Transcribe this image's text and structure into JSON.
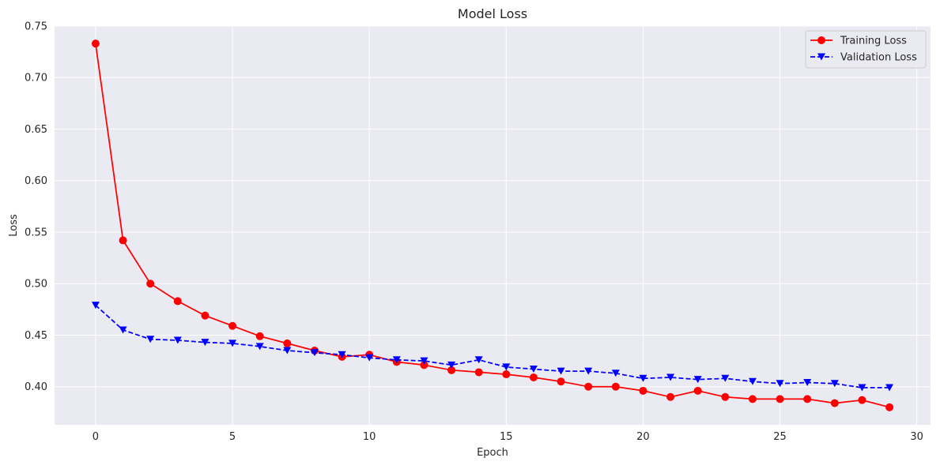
{
  "chart_data": {
    "type": "line",
    "title": "Model Loss",
    "xlabel": "Epoch",
    "ylabel": "Loss",
    "xlim": [
      -1.5,
      30.5
    ],
    "ylim": [
      0.363,
      0.75
    ],
    "xticks": [
      0,
      5,
      10,
      15,
      20,
      25,
      30
    ],
    "yticks": [
      0.4,
      0.45,
      0.5,
      0.55,
      0.6,
      0.65,
      0.7,
      0.75
    ],
    "grid": true,
    "legend_position": "top-right",
    "x": [
      0,
      1,
      2,
      3,
      4,
      5,
      6,
      7,
      8,
      9,
      10,
      11,
      12,
      13,
      14,
      15,
      16,
      17,
      18,
      19,
      20,
      21,
      22,
      23,
      24,
      25,
      26,
      27,
      28,
      29
    ],
    "series": [
      {
        "name": "Training Loss",
        "color": "#ff0000",
        "line_style": "solid",
        "marker": "circle",
        "values": [
          0.733,
          0.542,
          0.5,
          0.483,
          0.469,
          0.459,
          0.449,
          0.442,
          0.435,
          0.429,
          0.431,
          0.424,
          0.421,
          0.416,
          0.414,
          0.412,
          0.409,
          0.405,
          0.4,
          0.4,
          0.396,
          0.39,
          0.396,
          0.39,
          0.388,
          0.388,
          0.388,
          0.384,
          0.387,
          0.38
        ]
      },
      {
        "name": "Validation Loss",
        "color": "#0000ff",
        "line_style": "dashed",
        "marker": "triangle-down",
        "values": [
          0.479,
          0.455,
          0.446,
          0.445,
          0.443,
          0.442,
          0.439,
          0.435,
          0.433,
          0.431,
          0.428,
          0.426,
          0.425,
          0.421,
          0.426,
          0.419,
          0.417,
          0.415,
          0.415,
          0.413,
          0.408,
          0.409,
          0.407,
          0.408,
          0.405,
          0.403,
          0.404,
          0.403,
          0.399,
          0.399
        ]
      }
    ],
    "colors": {
      "plot_background": "#eaeaf2",
      "grid": "#ffffff"
    }
  }
}
